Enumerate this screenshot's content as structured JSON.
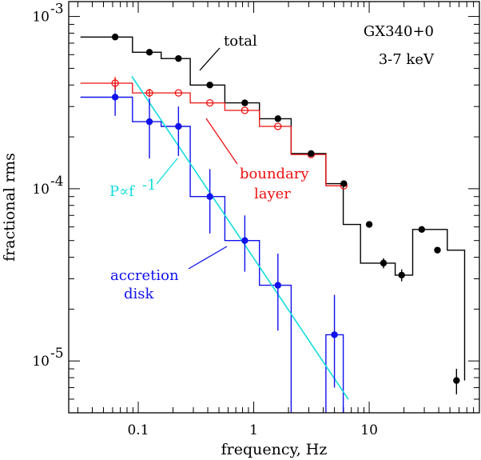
{
  "chart_data": {
    "type": "line",
    "log_x": true,
    "log_y": true,
    "xlim": [
      0.025,
      90
    ],
    "ylim": [
      5e-06,
      0.00122
    ],
    "xlabel": "frequency, Hz",
    "ylabel": "fractional rms",
    "x_tick_labels": [
      {
        "value": 0.1,
        "label": "0.1"
      },
      {
        "value": 1,
        "label": "1"
      },
      {
        "value": 10,
        "label": "10"
      }
    ],
    "y_tick_labels": [
      {
        "value": 1e-05,
        "base": "10",
        "exp": "-5"
      },
      {
        "value": 0.0001,
        "base": "10",
        "exp": "-4"
      },
      {
        "value": 0.001,
        "base": "10",
        "exp": "-3"
      }
    ],
    "bin_edges": [
      0.0316,
      0.0891,
      0.158,
      0.282,
      0.562,
      1.12,
      2.11,
      4.22,
      5.96,
      8.41,
      16.8,
      23.8,
      47.4,
      67.0
    ],
    "series": [
      {
        "name": "total",
        "color": "#000000",
        "marker": "filled",
        "x": [
          0.0631,
          0.125,
          0.223,
          0.417,
          0.837,
          1.62,
          3.14,
          6.03,
          10.0,
          13.3,
          19.1,
          28.5,
          39.0,
          57.0
        ],
        "y": [
          0.00076,
          0.00062,
          0.00057,
          0.0004,
          0.000315,
          0.000255,
          0.00016,
          0.000107,
          6.2e-05,
          3.7e-05,
          3.15e-05,
          5.8e-05,
          4.4e-05,
          7.7e-06
        ],
        "y_err": [
          0,
          0,
          0,
          0,
          0,
          0,
          0,
          0,
          0,
          2.5e-06,
          2.5e-06,
          0,
          0,
          1.3e-06
        ]
      },
      {
        "name": "boundary layer",
        "color": "#ee1111",
        "marker": "open",
        "x": [
          0.0631,
          0.125,
          0.223,
          0.417,
          0.837,
          1.62,
          3.14,
          6.03
        ],
        "y": [
          0.00041,
          0.00036,
          0.00036,
          0.000315,
          0.000285,
          0.00023,
          0.000158,
          0.000104
        ],
        "y_err": [
          3.5e-05,
          2e-05,
          0,
          0,
          0,
          0,
          0,
          0
        ]
      },
      {
        "name": "accretion disk",
        "color": "#1111ee",
        "marker": "filled",
        "x": [
          0.0631,
          0.125,
          0.223,
          0.417,
          0.837,
          1.62,
          5.0
        ],
        "y": [
          0.00034,
          0.000245,
          0.00023,
          9e-05,
          5e-05,
          2.75e-05,
          1.42e-05
        ],
        "y_err_lo": [
          7.5e-05,
          9.5e-05,
          7.5e-05,
          3.5e-05,
          1.7e-05,
          1.25e-05,
          7.2e-06
        ],
        "y_err_hi": [
          7e-05,
          9e-05,
          7e-05,
          4e-05,
          2e-05,
          1.45e-05,
          1e-05
        ]
      }
    ],
    "power_law": {
      "label": "P∝f",
      "label_exp": "-1",
      "color": "#11dddd",
      "amplitude": 3.95e-05,
      "x_range": [
        0.088,
        6.6
      ]
    },
    "annotations": [
      {
        "id": "source",
        "text": "GX340+0",
        "color": "#000000"
      },
      {
        "id": "band",
        "text": "3-7 keV",
        "color": "#000000"
      },
      {
        "id": "total",
        "text": "total",
        "color": "#000000"
      },
      {
        "id": "bl1",
        "text": "boundary",
        "color": "#ee1111"
      },
      {
        "id": "bl2",
        "text": "layer",
        "color": "#ee1111"
      },
      {
        "id": "ad1",
        "text": "accretion",
        "color": "#1111ee"
      },
      {
        "id": "ad2",
        "text": "disk",
        "color": "#1111ee"
      }
    ]
  }
}
